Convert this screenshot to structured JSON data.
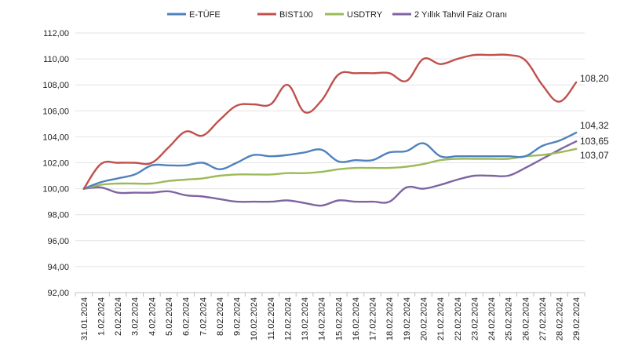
{
  "chart_data": {
    "type": "line",
    "title": "",
    "xlabel": "",
    "ylabel": "",
    "ylim": [
      92,
      112
    ],
    "y_ticks": [
      "92,00",
      "94,00",
      "96,00",
      "98,00",
      "100,00",
      "102,00",
      "104,00",
      "106,00",
      "108,00",
      "110,00",
      "112,00"
    ],
    "categories": [
      "31.01.2024",
      "1.02.2024",
      "2.02.2024",
      "3.02.2024",
      "4.02.2024",
      "5.02.2024",
      "6.02.2024",
      "7.02.2024",
      "8.02.2024",
      "9.02.2024",
      "10.02.2024",
      "11.02.2024",
      "12.02.2024",
      "13.02.2024",
      "14.02.2024",
      "15.02.2024",
      "16.02.2024",
      "17.02.2024",
      "18.02.2024",
      "19.02.2024",
      "20.02.2024",
      "21.02.2024",
      "22.02.2024",
      "23.02.2024",
      "24.02.2024",
      "25.02.2024",
      "26.02.2024",
      "27.02.2024",
      "28.02.2024",
      "29.02.2024"
    ],
    "series": [
      {
        "name": "E-TÜFE",
        "color": "#4f81bd",
        "values": [
          100.0,
          100.5,
          100.8,
          101.1,
          101.8,
          101.8,
          101.8,
          102.0,
          101.5,
          102.0,
          102.6,
          102.5,
          102.6,
          102.8,
          103.0,
          102.1,
          102.2,
          102.2,
          102.8,
          102.9,
          103.5,
          102.5,
          102.5,
          102.5,
          102.5,
          102.5,
          102.5,
          103.3,
          103.7,
          104.32
        ],
        "end_label": "104,32"
      },
      {
        "name": "BIST100",
        "color": "#c0504d",
        "values": [
          100.0,
          101.9,
          102.0,
          102.0,
          102.0,
          103.2,
          104.4,
          104.1,
          105.3,
          106.4,
          106.5,
          106.5,
          108.0,
          105.9,
          106.8,
          108.8,
          108.9,
          108.9,
          108.9,
          108.3,
          110.0,
          109.6,
          110.0,
          110.3,
          110.3,
          110.3,
          109.9,
          108.0,
          106.7,
          108.2
        ],
        "end_label": "108,20"
      },
      {
        "name": "USDTRY",
        "color": "#9bbb59",
        "values": [
          100.0,
          100.3,
          100.4,
          100.4,
          100.4,
          100.6,
          100.7,
          100.8,
          101.0,
          101.1,
          101.1,
          101.1,
          101.2,
          101.2,
          101.3,
          101.5,
          101.6,
          101.6,
          101.6,
          101.7,
          101.9,
          102.2,
          102.3,
          102.3,
          102.3,
          102.3,
          102.5,
          102.6,
          102.8,
          103.07
        ],
        "end_label": "103,07"
      },
      {
        "name": "2 Yıllık Tahvil Faiz Oranı",
        "color": "#8064a2",
        "values": [
          100.0,
          100.1,
          99.7,
          99.7,
          99.7,
          99.8,
          99.5,
          99.4,
          99.2,
          99.0,
          99.0,
          99.0,
          99.1,
          98.9,
          98.7,
          99.1,
          99.0,
          99.0,
          99.0,
          100.1,
          100.0,
          100.3,
          100.7,
          101.0,
          101.0,
          101.0,
          101.6,
          102.3,
          103.0,
          103.65
        ],
        "end_label": "103,65"
      }
    ]
  }
}
